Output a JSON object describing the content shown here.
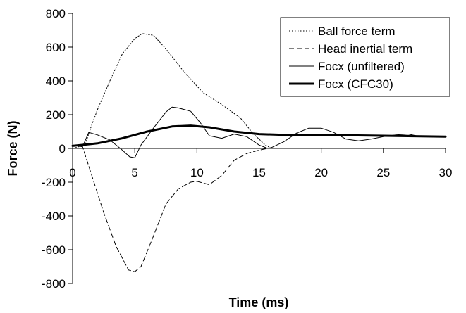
{
  "chart_data": {
    "type": "line",
    "title": "",
    "xlabel": "Time (ms)",
    "ylabel": "Force (N)",
    "xlim": [
      0,
      30
    ],
    "ylim": [
      -800,
      800
    ],
    "xticks": [
      0,
      5,
      10,
      15,
      20,
      25,
      30
    ],
    "yticks": [
      800,
      600,
      400,
      200,
      0,
      -200,
      -400,
      -600,
      -800
    ],
    "grid": false,
    "legend": "top-right",
    "series": [
      {
        "name": "Ball force term",
        "style": "dotted",
        "color": "#000000",
        "x": [
          0,
          1,
          1.5,
          2,
          3,
          4,
          5,
          5.6,
          6.5,
          7.5,
          9,
          10.5,
          12,
          13.5,
          14.5,
          15.5,
          16,
          17,
          20,
          25,
          30
        ],
        "y": [
          0,
          20,
          130,
          230,
          400,
          560,
          650,
          680,
          670,
          590,
          450,
          330,
          260,
          180,
          90,
          20,
          0,
          0,
          0,
          0,
          0
        ]
      },
      {
        "name": "Head inertial term",
        "style": "dashed",
        "color": "#000000",
        "x": [
          0,
          0.8,
          1.5,
          2.5,
          3.5,
          4.5,
          5,
          5.5,
          6.5,
          7.5,
          8.5,
          9.5,
          10,
          11,
          12,
          13,
          14,
          15,
          15.7,
          16,
          17,
          20,
          25,
          30
        ],
        "y": [
          20,
          10,
          -150,
          -380,
          -580,
          -720,
          -730,
          -700,
          -520,
          -330,
          -240,
          -200,
          -195,
          -215,
          -160,
          -70,
          -30,
          -10,
          0,
          0,
          0,
          0,
          0,
          0
        ],
        "values_note": ""
      },
      {
        "name": "Focx (unfiltered)",
        "style": "solid-thin",
        "color": "#000000",
        "x": [
          0,
          0.8,
          1.3,
          2,
          3,
          4,
          4.6,
          5,
          5.5,
          6.5,
          7.5,
          8,
          8.5,
          9.5,
          10.3,
          11,
          12,
          13,
          14,
          15,
          15.7,
          16,
          17,
          18,
          19,
          20,
          21,
          22,
          23,
          24,
          25,
          26,
          27,
          28,
          30
        ],
        "y": [
          20,
          10,
          95,
          80,
          50,
          -10,
          -50,
          -55,
          20,
          120,
          215,
          245,
          240,
          220,
          150,
          75,
          60,
          85,
          70,
          20,
          0,
          5,
          40,
          90,
          120,
          120,
          95,
          55,
          45,
          55,
          70,
          80,
          85,
          70,
          70
        ]
      },
      {
        "name": "Focx (CFC30)",
        "style": "solid-thick",
        "color": "#000000",
        "x": [
          0,
          2,
          4,
          6,
          8,
          9.5,
          11,
          13,
          15,
          17,
          20,
          25,
          30
        ],
        "y": [
          15,
          30,
          60,
          100,
          130,
          135,
          125,
          100,
          85,
          80,
          80,
          75,
          70
        ]
      }
    ]
  }
}
